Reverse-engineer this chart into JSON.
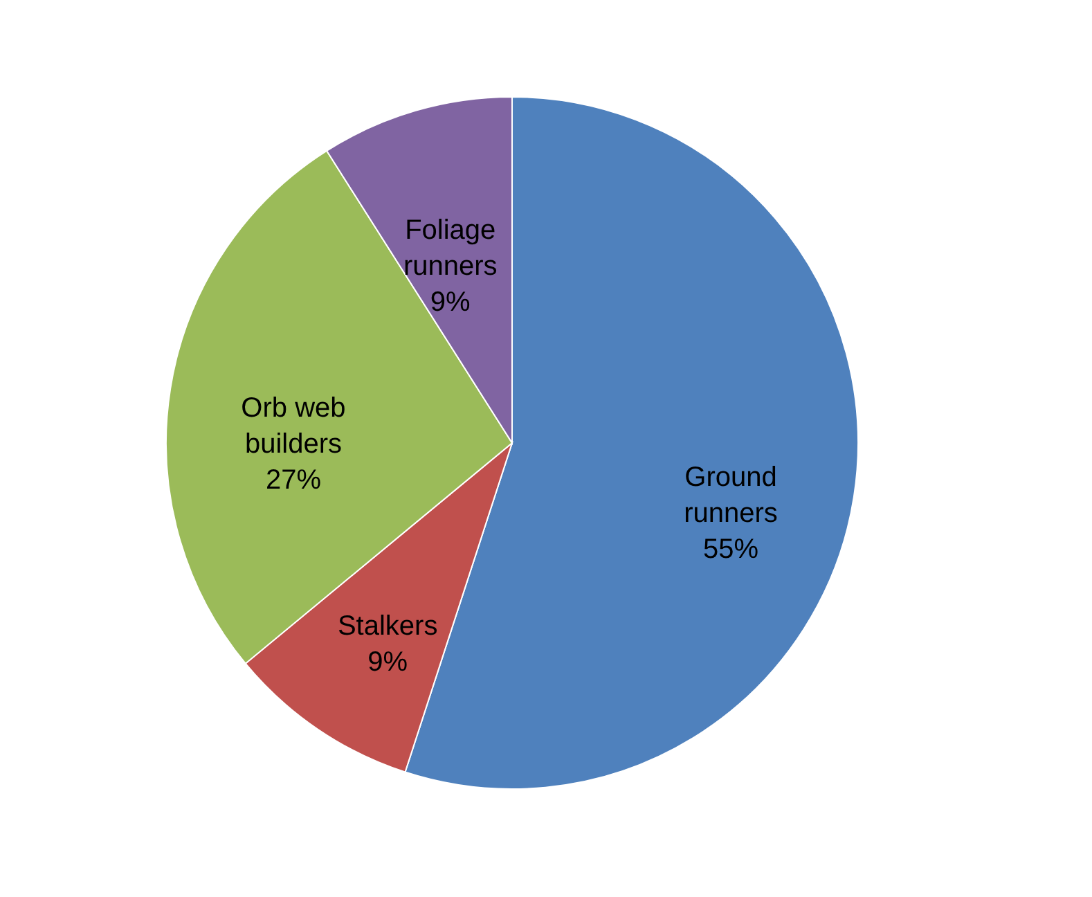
{
  "chart_data": {
    "type": "pie",
    "categories": [
      "Ground runners",
      "Stalkers",
      "Orb web builders",
      "Foliage runners"
    ],
    "values": [
      55,
      9,
      27,
      9
    ],
    "value_labels": [
      "55%",
      "9%",
      "27%",
      "9%"
    ],
    "colors": [
      "#4f81bd",
      "#c0504d",
      "#9bbb59",
      "#8064a2"
    ],
    "legend": false
  }
}
